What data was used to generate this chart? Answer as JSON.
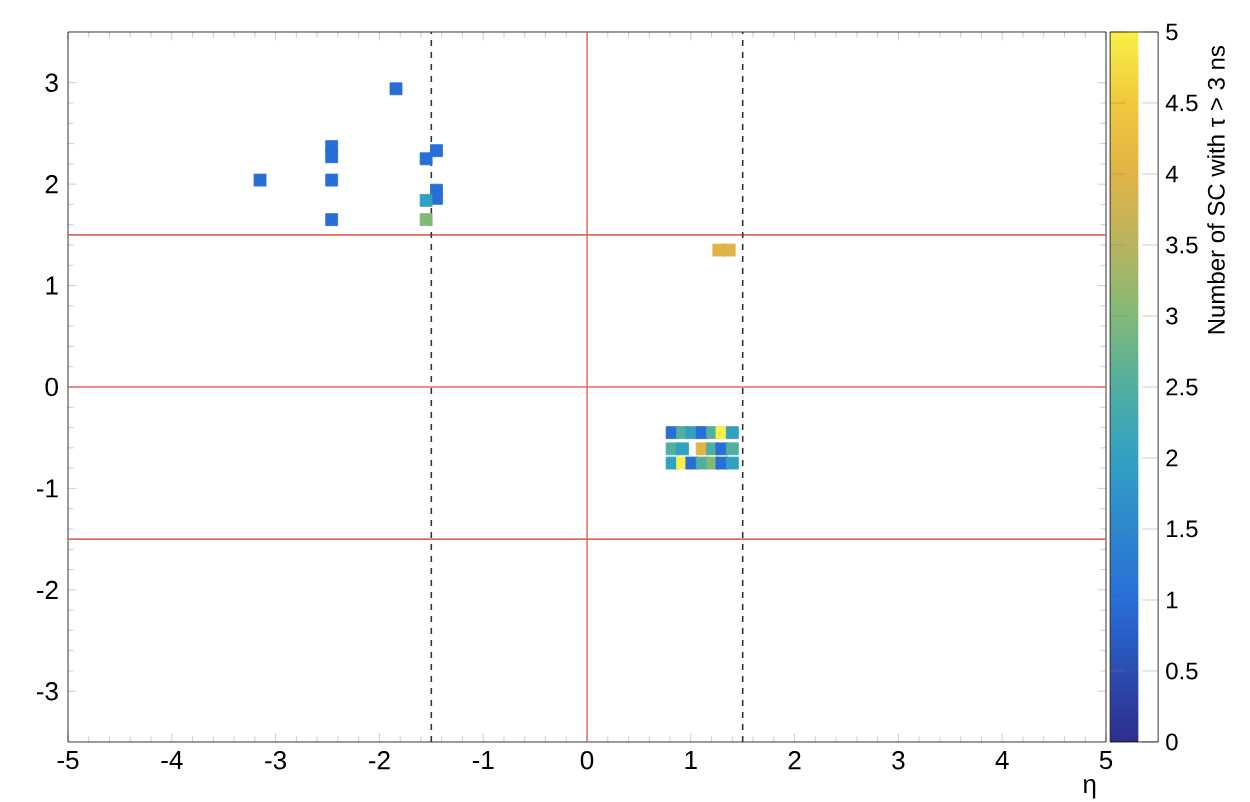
{
  "chart_data": {
    "type": "scatter",
    "xlabel": "η",
    "clabel": "Number of SC with τ > 3 ns",
    "xlim": [
      -5,
      5
    ],
    "ylim": [
      -3.5,
      3.5
    ],
    "xticks": [
      -5,
      -4,
      -3,
      -2,
      -1,
      0,
      1,
      2,
      3,
      4,
      5
    ],
    "yticks": [
      -3,
      -2,
      -1,
      0,
      1,
      2,
      3
    ],
    "clim": [
      0,
      5
    ],
    "cticks": [
      0,
      0.5,
      1,
      1.5,
      2,
      2.5,
      3,
      3.5,
      4,
      4.5,
      5
    ],
    "marker": "square",
    "x": [
      -3.15,
      -2.46,
      -2.46,
      -2.46,
      -2.46,
      -1.84,
      -1.55,
      -1.45,
      -1.45,
      -1.45,
      -1.55,
      -1.55,
      1.27,
      1.37,
      0.82,
      0.92,
      1.01,
      1.11,
      1.21,
      1.3,
      1.4,
      0.82,
      0.92,
      1.11,
      1.21,
      1.3,
      1.4,
      0.82,
      0.92,
      1.01,
      1.11,
      1.21,
      1.3,
      1.4
    ],
    "values": [
      2.04,
      2.37,
      2.27,
      2.04,
      1.65,
      2.94,
      2.25,
      2.33,
      1.94,
      1.86,
      1.84,
      1.65,
      1.35,
      1.35,
      -0.45,
      -0.45,
      -0.45,
      -0.45,
      -0.45,
      -0.45,
      -0.45,
      -0.61,
      -0.61,
      -0.61,
      -0.61,
      -0.61,
      -0.61,
      -0.75,
      -0.75,
      -0.75,
      -0.75,
      -0.75,
      -0.75,
      -0.75
    ],
    "cvalues": [
      1,
      1,
      1,
      1,
      1,
      1,
      1,
      1,
      1,
      1,
      2,
      3,
      4,
      4,
      1,
      2.5,
      2,
      1,
      2.5,
      5,
      2,
      2.5,
      2,
      4,
      2.5,
      1,
      2.5,
      2,
      5,
      1,
      2.5,
      3,
      1,
      2
    ],
    "ref_lines": [
      {
        "axis": "y",
        "value": 1.5,
        "color": "#dd6a5f",
        "line_style": "solid"
      },
      {
        "axis": "y",
        "value": 0,
        "color": "#dd6a5f",
        "line_style": "solid"
      },
      {
        "axis": "y",
        "value": -1.5,
        "color": "#dd6a5f",
        "line_style": "solid"
      },
      {
        "axis": "x",
        "value": 0,
        "color": "#dd6a5f",
        "line_style": "solid"
      },
      {
        "axis": "x",
        "value": -1.5,
        "color": "#333333",
        "line_style": "dashed"
      },
      {
        "axis": "x",
        "value": 1.5,
        "color": "#333333",
        "line_style": "dashed"
      }
    ]
  }
}
